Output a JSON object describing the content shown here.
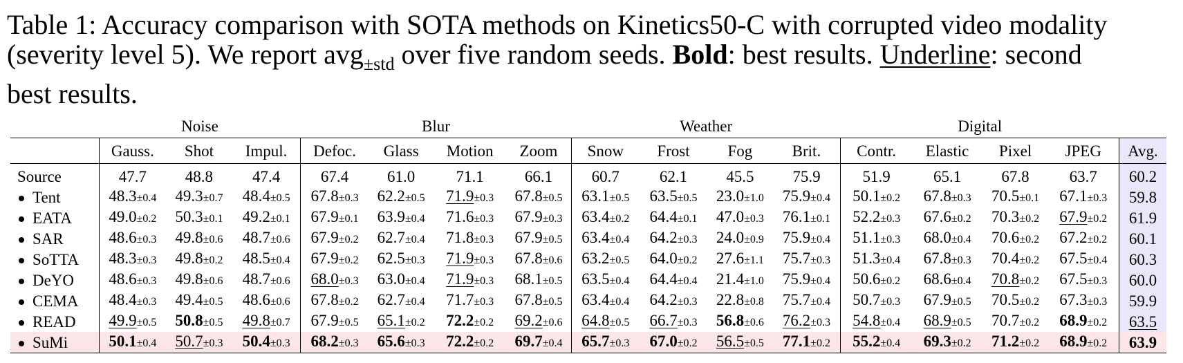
{
  "caption": {
    "line1": "Table 1: Accuracy comparison with SOTA methods on Kinetics50-C with corrupted video modality",
    "line2_a": "(severity level 5). We report avg",
    "line2_sub": "±std",
    "line2_b": " over five random seeds. ",
    "bold_word": "Bold",
    "line2_c": ": best results. ",
    "underline_word": "Underline",
    "line2_d": ": second",
    "line3": "best results."
  },
  "table": {
    "groups": [
      {
        "label": "Noise",
        "span": 3
      },
      {
        "label": "Blur",
        "span": 4
      },
      {
        "label": "Weather",
        "span": 4
      },
      {
        "label": "Digital",
        "span": 4
      }
    ],
    "columns": [
      "Gauss.",
      "Shot",
      "Impul.",
      "Defoc.",
      "Glass",
      "Motion",
      "Zoom",
      "Snow",
      "Frost",
      "Fog",
      "Brit.",
      "Contr.",
      "Elastic",
      "Pixel",
      "JPEG"
    ],
    "avg_label": "Avg.",
    "rows": [
      {
        "method": "Source",
        "bullet": false,
        "cells": [
          {
            "v": "47.7"
          },
          {
            "v": "48.8"
          },
          {
            "v": "47.4"
          },
          {
            "v": "67.4"
          },
          {
            "v": "61.0"
          },
          {
            "v": "71.1"
          },
          {
            "v": "66.1"
          },
          {
            "v": "60.7"
          },
          {
            "v": "62.1"
          },
          {
            "v": "45.5"
          },
          {
            "v": "75.9"
          },
          {
            "v": "51.9"
          },
          {
            "v": "65.1"
          },
          {
            "v": "67.8"
          },
          {
            "v": "63.7"
          }
        ],
        "avg": {
          "v": "60.2"
        }
      },
      {
        "method": "Tent",
        "bullet": true,
        "cells": [
          {
            "v": "48.3",
            "s": "±0.4"
          },
          {
            "v": "49.3",
            "s": "±0.7"
          },
          {
            "v": "48.4",
            "s": "±0.5"
          },
          {
            "v": "67.8",
            "s": "±0.3"
          },
          {
            "v": "62.2",
            "s": "±0.5"
          },
          {
            "v": "71.9",
            "s": "±0.3",
            "u": true
          },
          {
            "v": "67.8",
            "s": "±0.5"
          },
          {
            "v": "63.1",
            "s": "±0.5"
          },
          {
            "v": "63.5",
            "s": "±0.5"
          },
          {
            "v": "23.0",
            "s": "±1.0"
          },
          {
            "v": "75.9",
            "s": "±0.4"
          },
          {
            "v": "50.1",
            "s": "±0.2"
          },
          {
            "v": "67.8",
            "s": "±0.3"
          },
          {
            "v": "70.5",
            "s": "±0.1"
          },
          {
            "v": "67.1",
            "s": "±0.3"
          }
        ],
        "avg": {
          "v": "59.8"
        }
      },
      {
        "method": "EATA",
        "bullet": true,
        "cells": [
          {
            "v": "49.0",
            "s": "±0.2"
          },
          {
            "v": "50.3",
            "s": "±0.1"
          },
          {
            "v": "49.2",
            "s": "±0.1"
          },
          {
            "v": "67.9",
            "s": "±0.1"
          },
          {
            "v": "63.9",
            "s": "±0.4"
          },
          {
            "v": "71.6",
            "s": "±0.3"
          },
          {
            "v": "67.9",
            "s": "±0.3"
          },
          {
            "v": "63.4",
            "s": "±0.2"
          },
          {
            "v": "64.4",
            "s": "±0.1"
          },
          {
            "v": "47.0",
            "s": "±0.3"
          },
          {
            "v": "76.1",
            "s": "±0.1"
          },
          {
            "v": "52.2",
            "s": "±0.3"
          },
          {
            "v": "67.6",
            "s": "±0.2"
          },
          {
            "v": "70.3",
            "s": "±0.2"
          },
          {
            "v": "67.9",
            "s": "±0.2",
            "u": true
          }
        ],
        "avg": {
          "v": "61.9"
        }
      },
      {
        "method": "SAR",
        "bullet": true,
        "cells": [
          {
            "v": "48.6",
            "s": "±0.3"
          },
          {
            "v": "49.8",
            "s": "±0.6"
          },
          {
            "v": "48.7",
            "s": "±0.6"
          },
          {
            "v": "67.9",
            "s": "±0.2"
          },
          {
            "v": "62.7",
            "s": "±0.4"
          },
          {
            "v": "71.8",
            "s": "±0.3"
          },
          {
            "v": "67.9",
            "s": "±0.5"
          },
          {
            "v": "63.4",
            "s": "±0.4"
          },
          {
            "v": "64.2",
            "s": "±0.3"
          },
          {
            "v": "24.0",
            "s": "±0.9"
          },
          {
            "v": "75.9",
            "s": "±0.4"
          },
          {
            "v": "51.1",
            "s": "±0.3"
          },
          {
            "v": "68.0",
            "s": "±0.4"
          },
          {
            "v": "70.6",
            "s": "±0.2"
          },
          {
            "v": "67.2",
            "s": "±0.2"
          }
        ],
        "avg": {
          "v": "60.1"
        }
      },
      {
        "method": "SoTTA",
        "bullet": true,
        "cells": [
          {
            "v": "48.3",
            "s": "±0.3"
          },
          {
            "v": "49.8",
            "s": "±0.2"
          },
          {
            "v": "48.5",
            "s": "±0.4"
          },
          {
            "v": "67.9",
            "s": "±0.2"
          },
          {
            "v": "62.5",
            "s": "±0.3"
          },
          {
            "v": "71.9",
            "s": "±0.3",
            "u": true
          },
          {
            "v": "67.8",
            "s": "±0.6"
          },
          {
            "v": "63.2",
            "s": "±0.5"
          },
          {
            "v": "64.0",
            "s": "±0.2"
          },
          {
            "v": "27.6",
            "s": "±1.1"
          },
          {
            "v": "75.7",
            "s": "±0.3"
          },
          {
            "v": "51.3",
            "s": "±0.4"
          },
          {
            "v": "67.8",
            "s": "±0.3"
          },
          {
            "v": "70.4",
            "s": "±0.2"
          },
          {
            "v": "67.5",
            "s": "±0.4"
          }
        ],
        "avg": {
          "v": "60.3"
        }
      },
      {
        "method": "DeYO",
        "bullet": true,
        "cells": [
          {
            "v": "48.6",
            "s": "±0.3"
          },
          {
            "v": "49.8",
            "s": "±0.6"
          },
          {
            "v": "48.7",
            "s": "±0.6"
          },
          {
            "v": "68.0",
            "s": "±0.3",
            "u": true
          },
          {
            "v": "63.0",
            "s": "±0.4"
          },
          {
            "v": "71.9",
            "s": "±0.3",
            "u": true
          },
          {
            "v": "68.1",
            "s": "±0.5"
          },
          {
            "v": "63.5",
            "s": "±0.4"
          },
          {
            "v": "64.4",
            "s": "±0.4"
          },
          {
            "v": "21.4",
            "s": "±1.0"
          },
          {
            "v": "75.9",
            "s": "±0.4"
          },
          {
            "v": "50.6",
            "s": "±0.2"
          },
          {
            "v": "68.6",
            "s": "±0.4"
          },
          {
            "v": "70.8",
            "s": "±0.2",
            "u": true
          },
          {
            "v": "67.5",
            "s": "±0.3"
          }
        ],
        "avg": {
          "v": "60.0"
        }
      },
      {
        "method": "CEMA",
        "bullet": true,
        "cells": [
          {
            "v": "48.4",
            "s": "±0.3"
          },
          {
            "v": "49.4",
            "s": "±0.5"
          },
          {
            "v": "48.6",
            "s": "±0.6"
          },
          {
            "v": "67.8",
            "s": "±0.2"
          },
          {
            "v": "62.7",
            "s": "±0.4"
          },
          {
            "v": "71.7",
            "s": "±0.3"
          },
          {
            "v": "67.8",
            "s": "±0.5"
          },
          {
            "v": "63.4",
            "s": "±0.4"
          },
          {
            "v": "64.2",
            "s": "±0.3"
          },
          {
            "v": "22.8",
            "s": "±0.8"
          },
          {
            "v": "75.7",
            "s": "±0.4"
          },
          {
            "v": "50.7",
            "s": "±0.3"
          },
          {
            "v": "67.9",
            "s": "±0.5"
          },
          {
            "v": "70.5",
            "s": "±0.2"
          },
          {
            "v": "67.3",
            "s": "±0.3"
          }
        ],
        "avg": {
          "v": "59.9"
        }
      },
      {
        "method": "READ",
        "bullet": true,
        "cells": [
          {
            "v": "49.9",
            "s": "±0.5",
            "u": true
          },
          {
            "v": "50.8",
            "s": "±0.5",
            "b": true
          },
          {
            "v": "49.8",
            "s": "±0.7",
            "u": true
          },
          {
            "v": "67.9",
            "s": "±0.5"
          },
          {
            "v": "65.1",
            "s": "±0.2",
            "u": true
          },
          {
            "v": "72.2",
            "s": "±0.2",
            "b": true
          },
          {
            "v": "69.2",
            "s": "±0.6",
            "u": true
          },
          {
            "v": "64.8",
            "s": "±0.5",
            "u": true
          },
          {
            "v": "66.7",
            "s": "±0.3",
            "u": true
          },
          {
            "v": "56.8",
            "s": "±0.6",
            "b": true
          },
          {
            "v": "76.2",
            "s": "±0.3",
            "u": true
          },
          {
            "v": "54.8",
            "s": "±0.4",
            "u": true
          },
          {
            "v": "68.9",
            "s": "±0.5",
            "u": true
          },
          {
            "v": "70.7",
            "s": "±0.2"
          },
          {
            "v": "68.9",
            "s": "±0.2",
            "b": true
          }
        ],
        "avg": {
          "v": "63.5",
          "u": true
        }
      },
      {
        "method": "SuMi",
        "bullet": true,
        "highlight": true,
        "cells": [
          {
            "v": "50.1",
            "s": "±0.4",
            "b": true
          },
          {
            "v": "50.7",
            "s": "±0.3",
            "u": true
          },
          {
            "v": "50.4",
            "s": "±0.3",
            "b": true
          },
          {
            "v": "68.2",
            "s": "±0.3",
            "b": true
          },
          {
            "v": "65.6",
            "s": "±0.3",
            "b": true
          },
          {
            "v": "72.2",
            "s": "±0.2",
            "b": true
          },
          {
            "v": "69.7",
            "s": "±0.4",
            "b": true
          },
          {
            "v": "65.7",
            "s": "±0.3",
            "b": true
          },
          {
            "v": "67.0",
            "s": "±0.2",
            "b": true
          },
          {
            "v": "56.5",
            "s": "±0.5",
            "u": true
          },
          {
            "v": "77.1",
            "s": "±0.2",
            "b": true
          },
          {
            "v": "55.2",
            "s": "±0.4",
            "b": true
          },
          {
            "v": "69.3",
            "s": "±0.2",
            "b": true
          },
          {
            "v": "71.2",
            "s": "±0.2",
            "b": true
          },
          {
            "v": "68.9",
            "s": "±0.2",
            "b": true
          }
        ],
        "avg": {
          "v": "63.9",
          "b": true
        }
      }
    ]
  }
}
